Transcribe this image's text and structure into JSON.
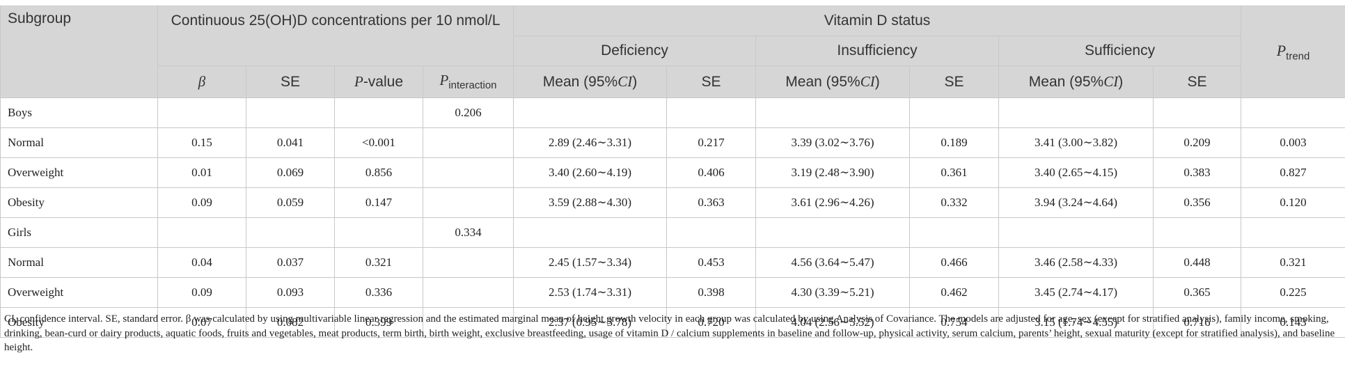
{
  "header": {
    "subgroup": "Subgroup",
    "continuous": "Continuous 25(OH)D concentrations per 10 nmol/L",
    "vitamin_d_status": "Vitamin D status",
    "deficiency": "Deficiency",
    "insufficiency": "Insufficiency",
    "sufficiency": "Sufficiency",
    "p_trend_main": "P",
    "p_trend_sub": "trend",
    "beta": "β",
    "se": "SE",
    "p_value_italic": "P",
    "p_value_rest": "-value",
    "p_interaction_main": "P",
    "p_interaction_sub": "interaction",
    "mean_prefix": "Mean (95%",
    "mean_ci": "CI",
    "mean_suffix": ")"
  },
  "rows": [
    {
      "label": "Boys",
      "beta": "",
      "se": "",
      "p": "",
      "pint": "0.206",
      "def_mean": "",
      "def_se": "",
      "ins_mean": "",
      "ins_se": "",
      "suf_mean": "",
      "suf_se": "",
      "ptrend": ""
    },
    {
      "label": "Normal",
      "beta": "0.15",
      "se": "0.041",
      "p": "<0.001",
      "pint": "",
      "def_mean": "2.89 (2.46∼3.31)",
      "def_se": "0.217",
      "ins_mean": "3.39 (3.02∼3.76)",
      "ins_se": "0.189",
      "suf_mean": "3.41 (3.00∼3.82)",
      "suf_se": "0.209",
      "ptrend": "0.003"
    },
    {
      "label": "Overweight",
      "beta": "0.01",
      "se": "0.069",
      "p": "0.856",
      "pint": "",
      "def_mean": "3.40 (2.60∼4.19)",
      "def_se": "0.406",
      "ins_mean": "3.19 (2.48∼3.90)",
      "ins_se": "0.361",
      "suf_mean": "3.40 (2.65∼4.15)",
      "suf_se": "0.383",
      "ptrend": "0.827"
    },
    {
      "label": "Obesity",
      "beta": "0.09",
      "se": "0.059",
      "p": "0.147",
      "pint": "",
      "def_mean": "3.59 (2.88∼4.30)",
      "def_se": "0.363",
      "ins_mean": "3.61 (2.96∼4.26)",
      "ins_se": "0.332",
      "suf_mean": "3.94 (3.24∼4.64)",
      "suf_se": "0.356",
      "ptrend": "0.120"
    },
    {
      "label": "Girls",
      "beta": "",
      "se": "",
      "p": "",
      "pint": "0.334",
      "def_mean": "",
      "def_se": "",
      "ins_mean": "",
      "ins_se": "",
      "suf_mean": "",
      "suf_se": "",
      "ptrend": ""
    },
    {
      "label": "Normal",
      "beta": "0.04",
      "se": "0.037",
      "p": "0.321",
      "pint": "",
      "def_mean": "2.45 (1.57∼3.34)",
      "def_se": "0.453",
      "ins_mean": "4.56 (3.64∼5.47)",
      "ins_se": "0.466",
      "suf_mean": "3.46 (2.58∼4.33)",
      "suf_se": "0.448",
      "ptrend": "0.321"
    },
    {
      "label": "Overweight",
      "beta": "0.09",
      "se": "0.093",
      "p": "0.336",
      "pint": "",
      "def_mean": "2.53 (1.74∼3.31)",
      "def_se": "0.398",
      "ins_mean": "4.30 (3.39∼5.21)",
      "ins_se": "0.462",
      "suf_mean": "3.45 (2.74∼4.17)",
      "suf_se": "0.365",
      "ptrend": "0.225"
    },
    {
      "label": "Obesity",
      "beta": "0.07",
      "se": "0.082",
      "p": "0.399",
      "pint": "",
      "def_mean": "2.37 (0.95∼3.78)",
      "def_se": "0.720",
      "ins_mean": "4.04 (2.56∼5.52)",
      "ins_se": "0.754",
      "suf_mean": "3.15 (1.74∼4.55)",
      "suf_se": "0.716",
      "ptrend": "0.143"
    }
  ],
  "footnote": "CI, confidence interval. SE, standard error. β was calculated by using multivariable linear regression and the estimated marginal mean of height growth velocity in each group was calculated by using Analysis of Covariance. The models are adjusted for age, sex (except for stratified analysis), family income, smoking, drinking, bean-curd or dairy products, aquatic foods, fruits and vegetables, meat products, term birth, birth weight, exclusive breastfeeding, usage of vitamin D / calcium supplements in baseline and follow-up, physical activity, serum calcium, parents’ height, sexual maturity (except for stratified analysis), and baseline height."
}
